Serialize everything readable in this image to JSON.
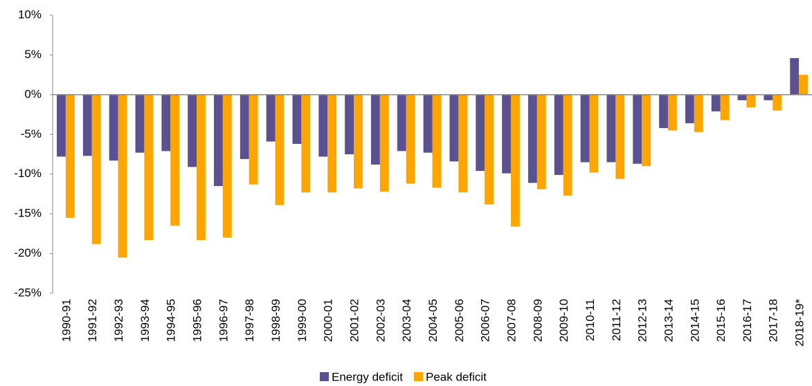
{
  "chart_data": {
    "type": "bar",
    "categories": [
      "1990-91",
      "1991-92",
      "1992-93",
      "1993-94",
      "1994-95",
      "1995-96",
      "1996-97",
      "1997-98",
      "1998-99",
      "1999-00",
      "2000-01",
      "2001-02",
      "2002-03",
      "2003-04",
      "2004-05",
      "2005-06",
      "2006-07",
      "2007-08",
      "2008-09",
      "2009-10",
      "2010-11",
      "2011-12",
      "2012-13",
      "2013-14",
      "2014-15",
      "2015-16",
      "2016-17",
      "2017-18",
      "2018-19*"
    ],
    "series": [
      {
        "name": "Energy deficit",
        "color": "#5b5190",
        "values": [
          -7.8,
          -7.7,
          -8.3,
          -7.3,
          -7.1,
          -9.1,
          -11.5,
          -8.1,
          -5.9,
          -6.2,
          -7.8,
          -7.5,
          -8.8,
          -7.1,
          -7.3,
          -8.4,
          -9.6,
          -9.9,
          -11.1,
          -10.1,
          -8.5,
          -8.5,
          -8.7,
          -4.2,
          -3.6,
          -2.1,
          -0.7,
          -0.7,
          4.6
        ]
      },
      {
        "name": "Peak deficit",
        "color": "#ffa500",
        "values": [
          -15.5,
          -18.8,
          -20.5,
          -18.3,
          -16.5,
          -18.3,
          -18.0,
          -11.3,
          -13.9,
          -12.3,
          -12.3,
          -11.8,
          -12.2,
          -11.2,
          -11.7,
          -12.3,
          -13.8,
          -16.6,
          -11.9,
          -12.7,
          -9.8,
          -10.6,
          -9.0,
          -4.5,
          -4.7,
          -3.2,
          -1.6,
          -2.0,
          2.5
        ]
      }
    ],
    "ylim": [
      -25,
      10
    ],
    "yticks": [
      {
        "value": -25,
        "label": "-25%"
      },
      {
        "value": -20,
        "label": "-20%"
      },
      {
        "value": -15,
        "label": "-15%"
      },
      {
        "value": -10,
        "label": "-10%"
      },
      {
        "value": -5,
        "label": "-5%"
      },
      {
        "value": 0,
        "label": "0%"
      },
      {
        "value": 5,
        "label": "5%"
      },
      {
        "value": 10,
        "label": "10%"
      }
    ],
    "legend": "bottom"
  }
}
